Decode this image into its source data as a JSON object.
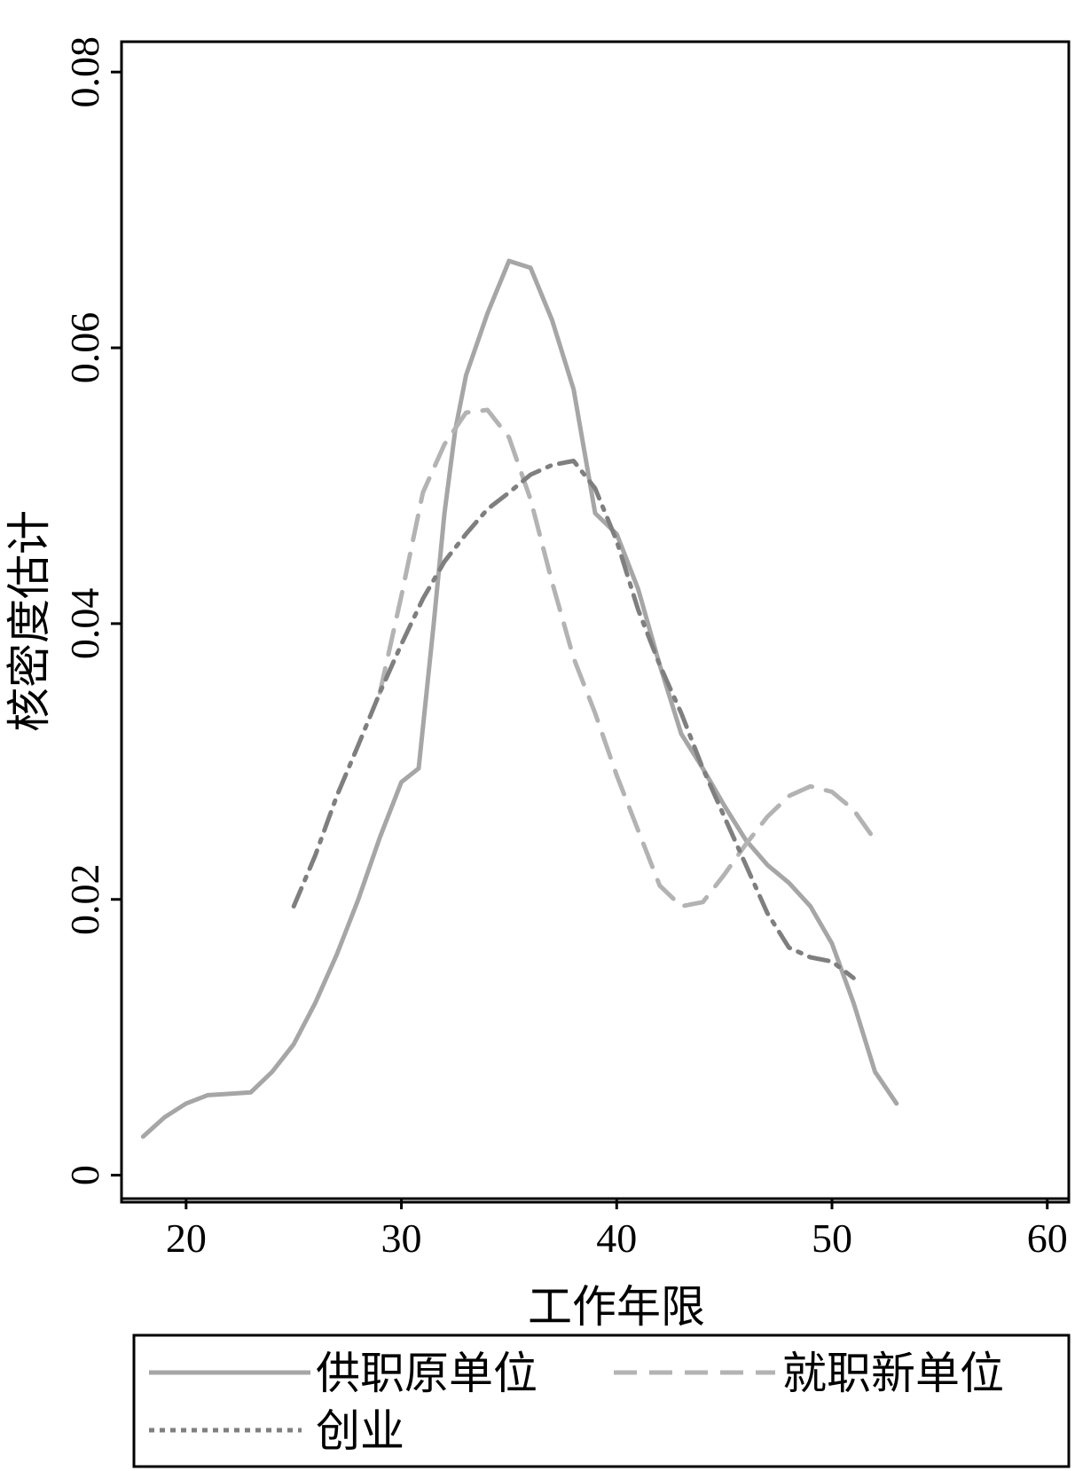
{
  "chart_data": {
    "type": "line",
    "xlabel": "工作年限",
    "ylabel": "核密度估计",
    "xlim": [
      17,
      61
    ],
    "ylim": [
      -0.0017,
      0.0822
    ],
    "x_ticks": [
      "20",
      "30",
      "40",
      "50",
      "60"
    ],
    "y_ticks": [
      "0",
      "0.02",
      "0.04",
      "0.06",
      "0.08"
    ],
    "legend_position": "bottom",
    "series": [
      {
        "name": "供职原单位",
        "color": "#a6a6a6",
        "dash": "solid",
        "x": [
          18,
          19,
          20,
          21,
          22,
          23,
          24,
          25,
          26,
          27,
          28,
          29,
          30,
          30.8,
          31.5,
          32,
          32.5,
          33,
          34,
          35,
          36,
          37,
          38,
          39,
          40,
          41,
          42,
          43,
          44,
          45,
          46,
          47,
          48,
          49,
          50,
          51,
          52,
          53
        ],
        "y": [
          0.0028,
          0.0042,
          0.0052,
          0.0058,
          0.0059,
          0.006,
          0.0075,
          0.0095,
          0.0125,
          0.016,
          0.02,
          0.0245,
          0.0285,
          0.0295,
          0.04,
          0.048,
          0.054,
          0.058,
          0.0625,
          0.0663,
          0.0658,
          0.062,
          0.057,
          0.048,
          0.0465,
          0.0425,
          0.037,
          0.032,
          0.0295,
          0.0268,
          0.0243,
          0.0225,
          0.0212,
          0.0195,
          0.0168,
          0.0125,
          0.0075,
          0.0052
        ]
      },
      {
        "name": "就职新单位",
        "color": "#b3b3b3",
        "dash": "dashed",
        "x": [
          29,
          30,
          31,
          32,
          33,
          34,
          35,
          36,
          37,
          38,
          39,
          40,
          41,
          42,
          43,
          44,
          45,
          46,
          47,
          48,
          49,
          50,
          51,
          52
        ],
        "y": [
          0.035,
          0.042,
          0.0495,
          0.053,
          0.0553,
          0.0555,
          0.0535,
          0.049,
          0.043,
          0.0375,
          0.0335,
          0.029,
          0.025,
          0.021,
          0.0195,
          0.0198,
          0.0218,
          0.024,
          0.026,
          0.0275,
          0.0282,
          0.0278,
          0.0265,
          0.0243
        ]
      },
      {
        "name": "创业",
        "color": "#7f7f7f",
        "dash": "dashdot",
        "x": [
          25,
          26,
          27,
          28,
          29,
          30,
          31,
          32,
          33,
          34,
          35,
          36,
          37,
          38,
          39,
          40,
          41,
          42,
          43,
          44,
          45,
          46,
          47,
          48,
          49,
          50,
          51
        ],
        "y": [
          0.0195,
          0.0232,
          0.0275,
          0.0312,
          0.035,
          0.0385,
          0.0418,
          0.0445,
          0.0465,
          0.0483,
          0.0495,
          0.0508,
          0.0515,
          0.0518,
          0.0498,
          0.046,
          0.041,
          0.037,
          0.0335,
          0.0295,
          0.026,
          0.0225,
          0.019,
          0.0165,
          0.0158,
          0.0155,
          0.0143
        ]
      }
    ]
  },
  "legend": {
    "items": [
      {
        "label": "供职原单位"
      },
      {
        "label": "就职新单位"
      },
      {
        "label": "创业"
      }
    ]
  }
}
